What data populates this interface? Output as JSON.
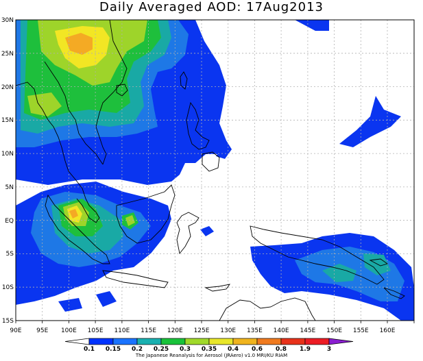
{
  "title": "Daily Averaged AOD: 17Aug2013",
  "x_labels": [
    "90E",
    "95E",
    "100E",
    "105E",
    "110E",
    "115E",
    "120E",
    "125E",
    "130E",
    "135E",
    "140E",
    "145E",
    "150E",
    "155E",
    "160E"
  ],
  "y_labels": [
    "30N",
    "25N",
    "20N",
    "15N",
    "10N",
    "5N",
    "EQ",
    "5S",
    "10S",
    "15S"
  ],
  "colorbar": {
    "labels": [
      "0.1",
      "0.15",
      "0.2",
      "0.25",
      "0.3",
      "0.35",
      "0.4",
      "0.6",
      "0.8",
      "1.9",
      "3"
    ],
    "colors": [
      "#ffffff",
      "#0033ff",
      "#1a73ff",
      "#19b0b0",
      "#18c23a",
      "#a0d92a",
      "#e8e62a",
      "#f0b41e",
      "#f07a1e",
      "#e8321a",
      "#ec1c24",
      "#8a1ed0"
    ]
  },
  "credit": "The Japanese Reanalysis for Aerosol (JRAero) v1.0 MRI/KU RIAM",
  "palette": {
    "c015": "#0a35f0",
    "c020": "#1e78e6",
    "c025": "#19a9a5",
    "c030": "#1ebf3c",
    "c035": "#9ed42a",
    "c040": "#f2e624",
    "c060": "#f4aa24"
  }
}
